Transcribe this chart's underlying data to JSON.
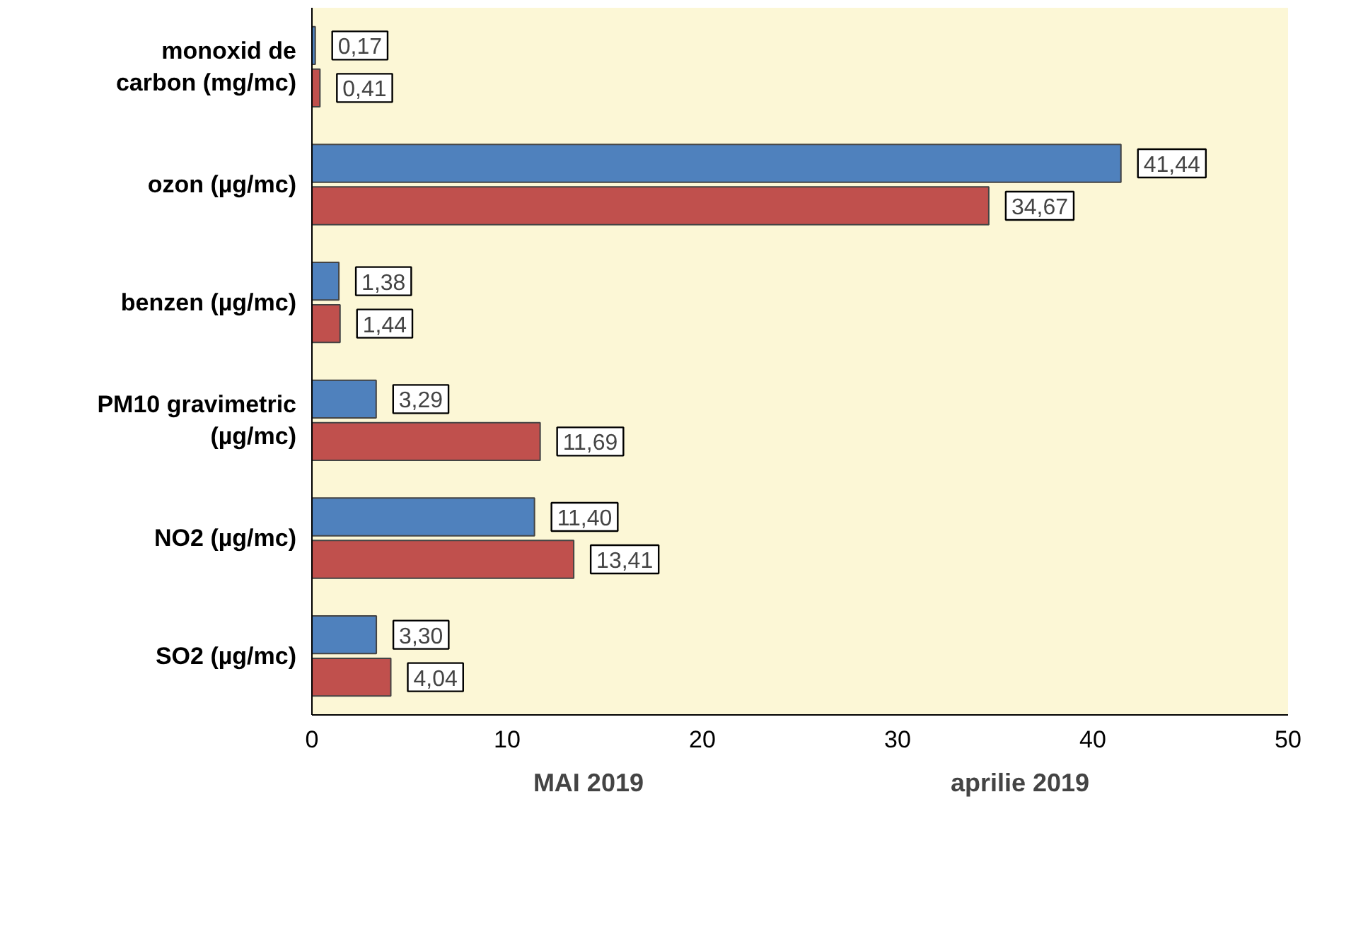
{
  "chart_data": {
    "type": "bar",
    "orientation": "horizontal",
    "categories": [
      "monoxid de\ncarbon (mg/mc)",
      "ozon (µg/mc)",
      "benzen (µg/mc)",
      "PM10 gravimetric\n(µg/mc)",
      "NO2 (µg/mc)",
      "SO2 (µg/mc)"
    ],
    "series": [
      {
        "name": "MAI 2019",
        "color": "#4f81bd",
        "values": [
          0.17,
          41.44,
          1.38,
          3.29,
          11.4,
          3.3
        ],
        "value_labels": [
          "0,17",
          "41,44",
          "1,38",
          "3,29",
          "11,40",
          "3,30"
        ]
      },
      {
        "name": "aprilie 2019",
        "color": "#c0504d",
        "values": [
          0.41,
          34.67,
          1.44,
          11.69,
          13.41,
          4.04
        ],
        "value_labels": [
          "0,41",
          "34,67",
          "1,44",
          "11,69",
          "13,41",
          "4,04"
        ]
      }
    ],
    "xlim": [
      0,
      50
    ],
    "xticks": [
      0,
      10,
      20,
      30,
      40,
      50
    ],
    "grid": false,
    "legend": "bottom"
  }
}
